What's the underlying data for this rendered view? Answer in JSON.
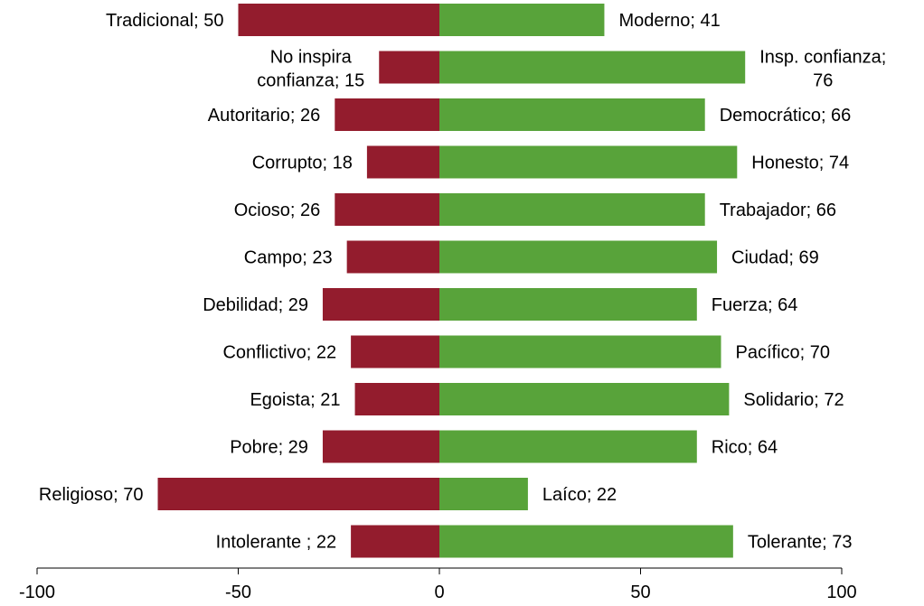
{
  "chart_data": {
    "type": "bar",
    "orientation": "horizontal-diverging",
    "title": "",
    "xlabel": "",
    "ylabel": "",
    "xlim": [
      -100,
      100
    ],
    "x_ticks": [
      -100,
      -50,
      0,
      50,
      100
    ],
    "tick_labels": [
      "-100",
      "-50",
      "0",
      "50",
      "100"
    ],
    "grid": false,
    "legend": "none",
    "colors": {
      "negative": "#931C2D",
      "positive": "#58A33A"
    },
    "pairs": [
      {
        "left_label": "Tradicional; 50",
        "left_value": 50,
        "right_label": "Moderno; 41",
        "right_value": 41
      },
      {
        "left_label": "No inspira confianza; 15",
        "left_lines": [
          "No inspira",
          "confianza; 15"
        ],
        "left_value": 15,
        "right_label": "Insp. confianza; 76",
        "right_lines": [
          "Insp. confianza;",
          "76"
        ],
        "right_value": 76
      },
      {
        "left_label": "Autoritario; 26",
        "left_value": 26,
        "right_label": "Democrático; 66",
        "right_value": 66
      },
      {
        "left_label": "Corrupto; 18",
        "left_value": 18,
        "right_label": "Honesto; 74",
        "right_value": 74
      },
      {
        "left_label": "Ocioso; 26",
        "left_value": 26,
        "right_label": "Trabajador; 66",
        "right_value": 66
      },
      {
        "left_label": "Campo; 23",
        "left_value": 23,
        "right_label": "Ciudad; 69",
        "right_value": 69
      },
      {
        "left_label": "Debilidad; 29",
        "left_value": 29,
        "right_label": "Fuerza; 64",
        "right_value": 64
      },
      {
        "left_label": "Conflictivo; 22",
        "left_value": 22,
        "right_label": "Pacífico; 70",
        "right_value": 70
      },
      {
        "left_label": "Egoista; 21",
        "left_value": 21,
        "right_label": "Solidario; 72",
        "right_value": 72
      },
      {
        "left_label": "Pobre; 29",
        "left_value": 29,
        "right_label": "Rico; 64",
        "right_value": 64
      },
      {
        "left_label": "Religioso; 70",
        "left_value": 70,
        "right_label": "Laíco; 22",
        "right_value": 22
      },
      {
        "left_label": "Intolerante ; 22",
        "left_value": 22,
        "right_label": "Tolerante; 73",
        "right_value": 73
      }
    ]
  }
}
